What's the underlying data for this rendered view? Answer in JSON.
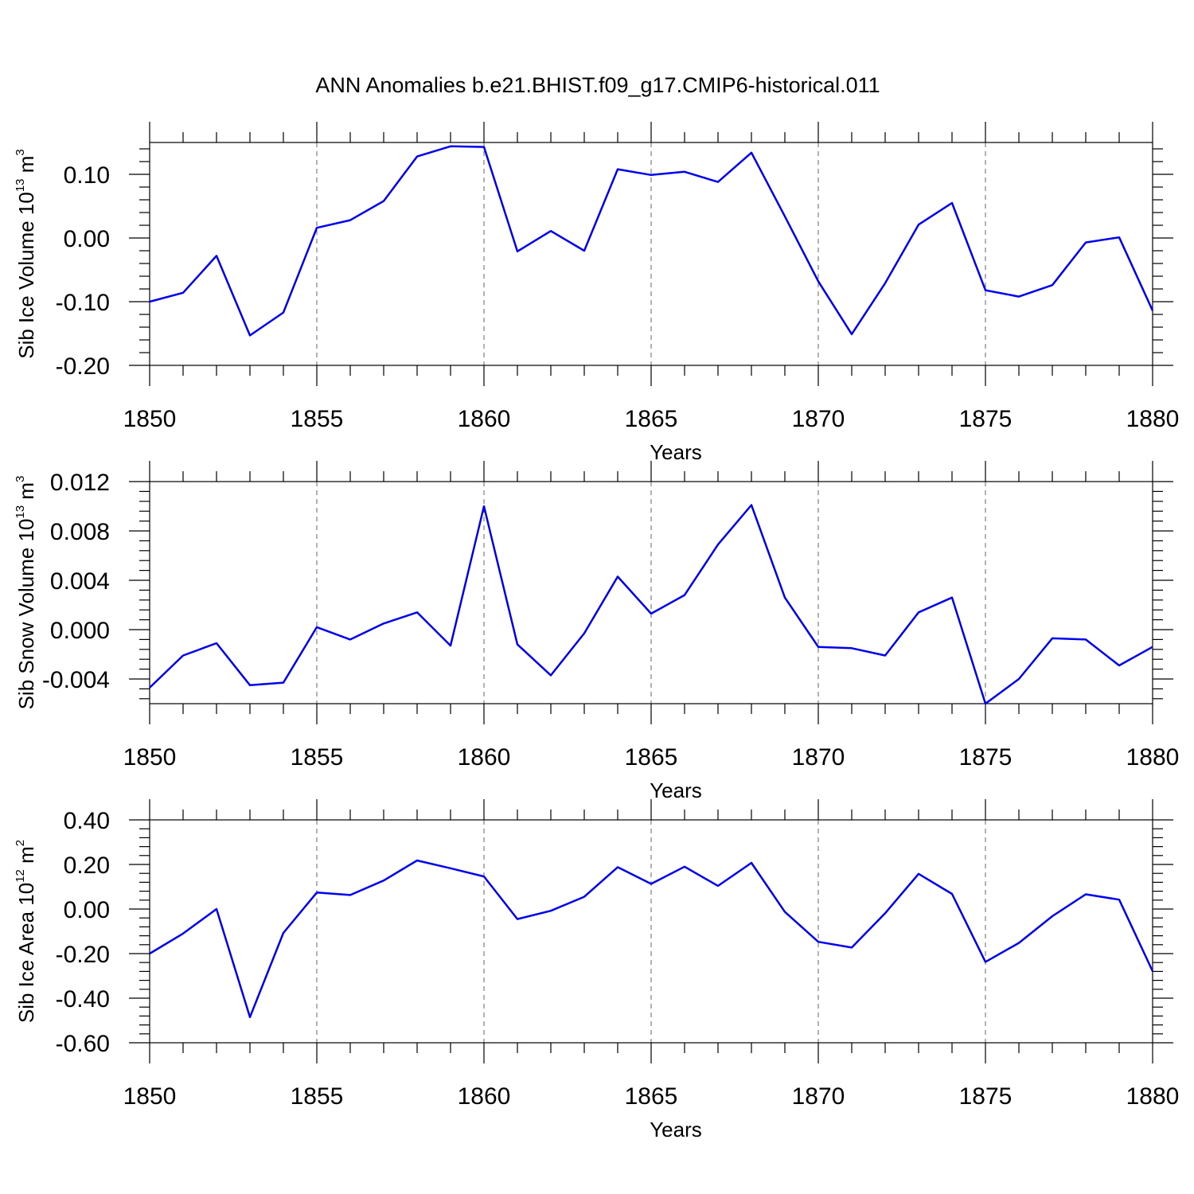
{
  "title": "ANN Anomalies b.e21.BHIST.f09_g17.CMIP6-historical.011",
  "chart_data": [
    {
      "type": "line",
      "ylabel_main": "Sib Ice Volume 10",
      "ylabel_exp": "13",
      "ylabel_unit": " m",
      "ylabel_unit_exp": "3",
      "xlabel": "Years",
      "xlim": [
        1850,
        1880
      ],
      "ylim": [
        -0.2,
        0.15
      ],
      "xticks": [
        1850,
        1855,
        1860,
        1865,
        1870,
        1875,
        1880
      ],
      "yticks": [
        -0.2,
        -0.1,
        0.0,
        0.1
      ],
      "yticklabels": [
        "-0.20",
        "-0.10",
        "0.00",
        "0.10"
      ],
      "grid": "vertical dashed at major x ticks",
      "line_color": "#0000ee",
      "x": [
        1850,
        1851,
        1852,
        1853,
        1854,
        1855,
        1856,
        1857,
        1858,
        1859,
        1860,
        1861,
        1862,
        1863,
        1864,
        1865,
        1866,
        1867,
        1868,
        1869,
        1870,
        1871,
        1872,
        1873,
        1874,
        1875,
        1876,
        1877,
        1878,
        1879,
        1880
      ],
      "y": [
        -0.1,
        -0.086,
        -0.028,
        -0.153,
        -0.117,
        0.016,
        0.028,
        0.058,
        0.128,
        0.144,
        0.143,
        -0.021,
        0.011,
        -0.02,
        0.108,
        0.099,
        0.104,
        0.088,
        0.134,
        0.034,
        -0.068,
        -0.151,
        -0.071,
        0.021,
        0.055,
        -0.082,
        -0.092,
        -0.074,
        -0.007,
        0.001,
        -0.114
      ]
    },
    {
      "type": "line",
      "ylabel_main": "Sib Snow Volume 10",
      "ylabel_exp": "13",
      "ylabel_unit": " m",
      "ylabel_unit_exp": "3",
      "xlabel": "Years",
      "xlim": [
        1850,
        1880
      ],
      "ylim": [
        -0.006,
        0.012
      ],
      "xticks": [
        1850,
        1855,
        1860,
        1865,
        1870,
        1875,
        1880
      ],
      "yticks": [
        -0.004,
        0.0,
        0.004,
        0.008,
        0.012
      ],
      "yticklabels": [
        "-0.004",
        "0.000",
        "0.004",
        "0.008",
        "0.012"
      ],
      "grid": "vertical dashed at major x ticks",
      "line_color": "#0000ee",
      "x": [
        1850,
        1851,
        1852,
        1853,
        1854,
        1855,
        1856,
        1857,
        1858,
        1859,
        1860,
        1861,
        1862,
        1863,
        1864,
        1865,
        1866,
        1867,
        1868,
        1869,
        1870,
        1871,
        1872,
        1873,
        1874,
        1875,
        1876,
        1877,
        1878,
        1879,
        1880
      ],
      "y": [
        -0.0047,
        -0.0021,
        -0.0011,
        -0.0045,
        -0.0043,
        0.0002,
        -0.0008,
        0.0005,
        0.0014,
        -0.0013,
        0.01,
        -0.0012,
        -0.0037,
        -0.0003,
        0.0043,
        0.0013,
        0.0028,
        0.0069,
        0.0101,
        0.0026,
        -0.0014,
        -0.0015,
        -0.0021,
        0.0014,
        0.0026,
        -0.006,
        -0.004,
        -0.0007,
        -0.0008,
        -0.0029,
        -0.0014
      ]
    },
    {
      "type": "line",
      "ylabel_main": "Sib Ice Area 10",
      "ylabel_exp": "12",
      "ylabel_unit": " m",
      "ylabel_unit_exp": "2",
      "xlabel": "Years",
      "xlim": [
        1850,
        1880
      ],
      "ylim": [
        -0.6,
        0.4
      ],
      "xticks": [
        1850,
        1855,
        1860,
        1865,
        1870,
        1875,
        1880
      ],
      "yticks": [
        -0.6,
        -0.4,
        -0.2,
        0.0,
        0.2,
        0.4
      ],
      "yticklabels": [
        "-0.60",
        "-0.40",
        "-0.20",
        "0.00",
        "0.20",
        "0.40"
      ],
      "grid": "vertical dashed at major x ticks",
      "line_color": "#0000ee",
      "x": [
        1850,
        1851,
        1852,
        1853,
        1854,
        1855,
        1856,
        1857,
        1858,
        1859,
        1860,
        1861,
        1862,
        1863,
        1864,
        1865,
        1866,
        1867,
        1868,
        1869,
        1870,
        1871,
        1872,
        1873,
        1874,
        1875,
        1876,
        1877,
        1878,
        1879,
        1880
      ],
      "y": [
        -0.2,
        -0.11,
        0.0,
        -0.485,
        -0.107,
        0.074,
        0.063,
        0.128,
        0.218,
        0.183,
        0.146,
        -0.045,
        -0.008,
        0.055,
        0.188,
        0.113,
        0.19,
        0.104,
        0.207,
        -0.013,
        -0.147,
        -0.173,
        -0.019,
        0.158,
        0.068,
        -0.237,
        -0.152,
        -0.032,
        0.066,
        0.042,
        -0.279
      ]
    }
  ]
}
